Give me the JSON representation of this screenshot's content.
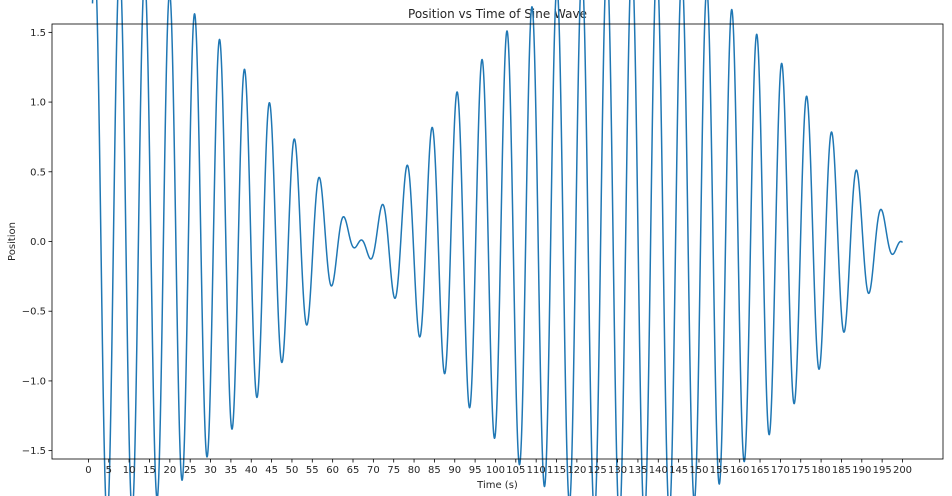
{
  "chart_data": {
    "type": "line",
    "title": "Position vs Time of Sine Wave",
    "xlabel": "Time (s)",
    "ylabel": "Position",
    "xlim": [
      -8.95,
      209.95
    ],
    "ylim": [
      -1.56,
      1.56
    ],
    "x_ticks": [
      0,
      5,
      10,
      15,
      20,
      25,
      30,
      35,
      40,
      45,
      50,
      55,
      60,
      65,
      70,
      75,
      80,
      85,
      90,
      95,
      100,
      105,
      110,
      115,
      120,
      125,
      130,
      135,
      140,
      145,
      150,
      155,
      160,
      165,
      170,
      175,
      180,
      185,
      190,
      195,
      200
    ],
    "y_ticks": [
      -1.5,
      -1.0,
      -0.5,
      0.0,
      0.5,
      1.0,
      1.5
    ],
    "y_tick_labels": [
      "−1.5",
      "−1.0",
      "−0.5",
      "0.0",
      "0.5",
      "1.0",
      "1.5"
    ],
    "grid": false,
    "line_color": "#1f77b4",
    "series": [
      {
        "function": "sin(t) + sin(2*pi*t/6)",
        "x_start": 1,
        "x_end": 200
      }
    ]
  }
}
